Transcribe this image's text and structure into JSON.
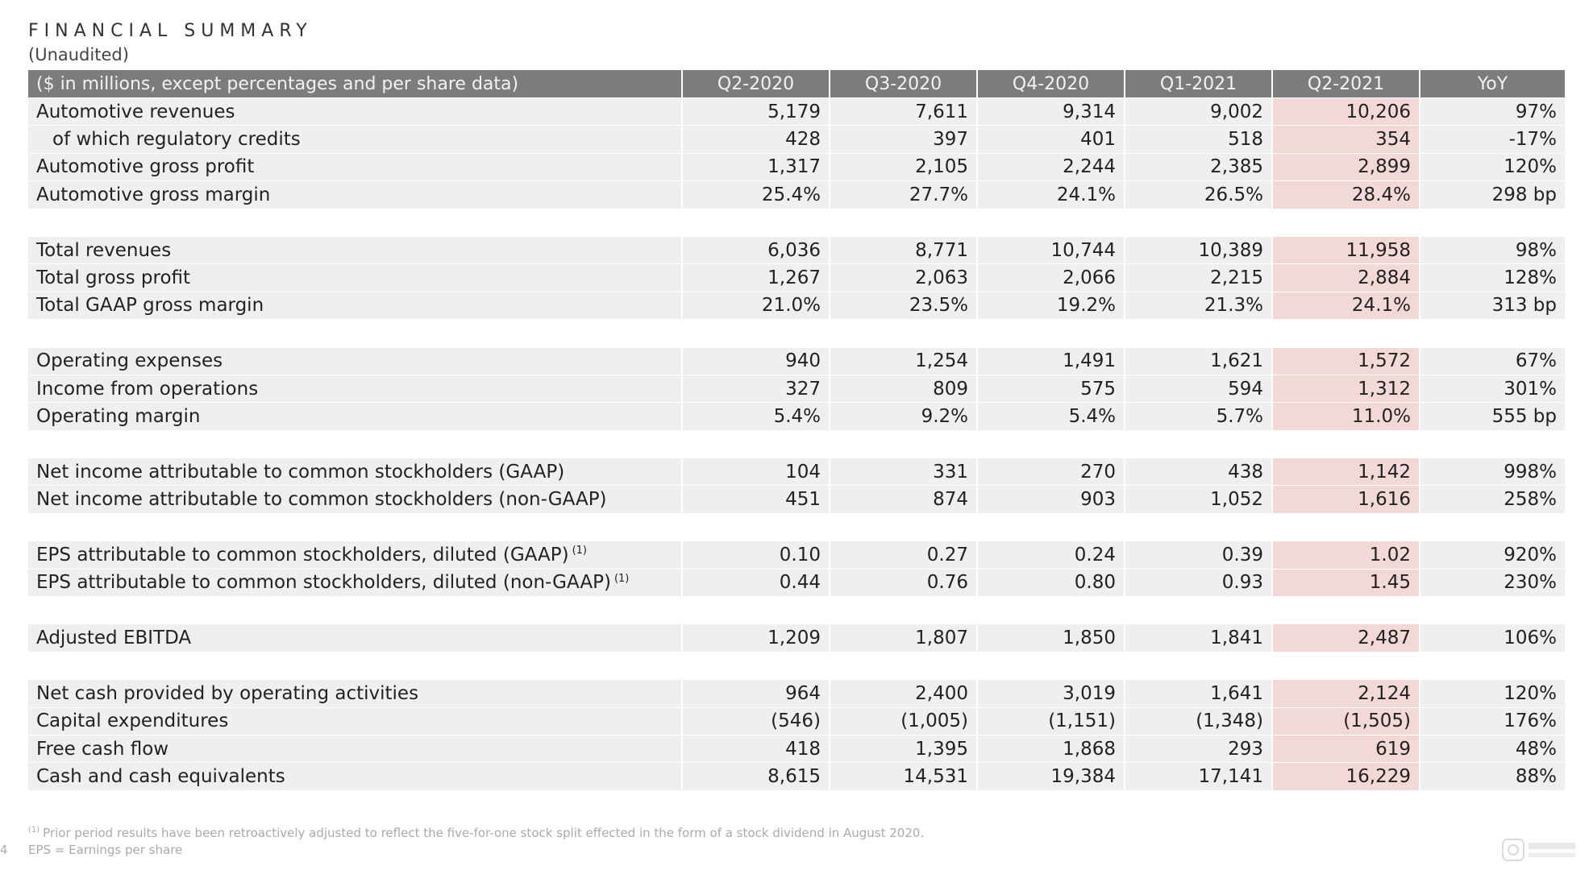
{
  "title": "FINANCIAL SUMMARY",
  "subtitle": "(Unaudited)",
  "header": {
    "label": "($ in millions, except percentages and per share data)",
    "columns": [
      "Q2-2020",
      "Q3-2020",
      "Q4-2020",
      "Q1-2021",
      "Q2-2021",
      "YoY"
    ]
  },
  "rows": [
    {
      "label": "Automotive revenues",
      "sup": "",
      "v": [
        "5,179",
        "7,611",
        "9,314",
        "9,002",
        "10,206",
        "97%"
      ]
    },
    {
      "label": "of which regulatory credits",
      "sup": "",
      "v": [
        "428",
        "397",
        "401",
        "518",
        "354",
        "-17%"
      ]
    },
    {
      "label": "Automotive gross profit",
      "sup": "",
      "v": [
        "1,317",
        "2,105",
        "2,244",
        "2,385",
        "2,899",
        "120%"
      ]
    },
    {
      "label": "Automotive gross margin",
      "sup": "",
      "v": [
        "25.4%",
        "27.7%",
        "24.1%",
        "26.5%",
        "28.4%",
        "298 bp"
      ]
    },
    {
      "label": "Total revenues",
      "sup": "",
      "v": [
        "6,036",
        "8,771",
        "10,744",
        "10,389",
        "11,958",
        "98%"
      ]
    },
    {
      "label": "Total gross profit",
      "sup": "",
      "v": [
        "1,267",
        "2,063",
        "2,066",
        "2,215",
        "2,884",
        "128%"
      ]
    },
    {
      "label": "Total GAAP gross margin",
      "sup": "",
      "v": [
        "21.0%",
        "23.5%",
        "19.2%",
        "21.3%",
        "24.1%",
        "313 bp"
      ]
    },
    {
      "label": "Operating expenses",
      "sup": "",
      "v": [
        "940",
        "1,254",
        "1,491",
        "1,621",
        "1,572",
        "67%"
      ]
    },
    {
      "label": "Income from operations",
      "sup": "",
      "v": [
        "327",
        "809",
        "575",
        "594",
        "1,312",
        "301%"
      ]
    },
    {
      "label": "Operating margin",
      "sup": "",
      "v": [
        "5.4%",
        "9.2%",
        "5.4%",
        "5.7%",
        "11.0%",
        "555 bp"
      ]
    },
    {
      "label": "Net income attributable to common stockholders (GAAP)",
      "sup": "",
      "v": [
        "104",
        "331",
        "270",
        "438",
        "1,142",
        "998%"
      ]
    },
    {
      "label": "Net income attributable to common stockholders (non-GAAP)",
      "sup": "",
      "v": [
        "451",
        "874",
        "903",
        "1,052",
        "1,616",
        "258%"
      ]
    },
    {
      "label": "EPS attributable to common stockholders, diluted (GAAP)",
      "sup": "(1)",
      "v": [
        "0.10",
        "0.27",
        "0.24",
        "0.39",
        "1.02",
        "920%"
      ]
    },
    {
      "label": "EPS attributable to common stockholders, diluted (non-GAAP)",
      "sup": "(1)",
      "v": [
        "0.44",
        "0.76",
        "0.80",
        "0.93",
        "1.45",
        "230%"
      ]
    },
    {
      "label": "Adjusted EBITDA",
      "sup": "",
      "v": [
        "1,209",
        "1,807",
        "1,850",
        "1,841",
        "2,487",
        "106%"
      ]
    },
    {
      "label": "Net cash provided by operating activities",
      "sup": "",
      "v": [
        "964",
        "2,400",
        "3,019",
        "1,641",
        "2,124",
        "120%"
      ]
    },
    {
      "label": "Capital expenditures",
      "sup": "",
      "v": [
        "(546)",
        "(1,005)",
        "(1,151)",
        "(1,348)",
        "(1,505)",
        "176%"
      ]
    },
    {
      "label": "Free cash flow",
      "sup": "",
      "v": [
        "418",
        "1,395",
        "1,868",
        "293",
        "619",
        "48%"
      ]
    },
    {
      "label": "Cash and cash equivalents",
      "sup": "",
      "v": [
        "8,615",
        "14,531",
        "19,384",
        "17,141",
        "16,229",
        "88%"
      ]
    }
  ],
  "footnote_marker": "(1)",
  "footnote": "Prior period results have been retroactively adjusted to reflect the five-for-one stock split effected in the form of a stock dividend in August 2020.",
  "footnote2": "EPS = Earnings per share",
  "page_number": "4",
  "colors": {
    "header_bg": "#7c7c7c",
    "row_bg": "#efefef",
    "highlight_bg": "#f3d8d8"
  }
}
